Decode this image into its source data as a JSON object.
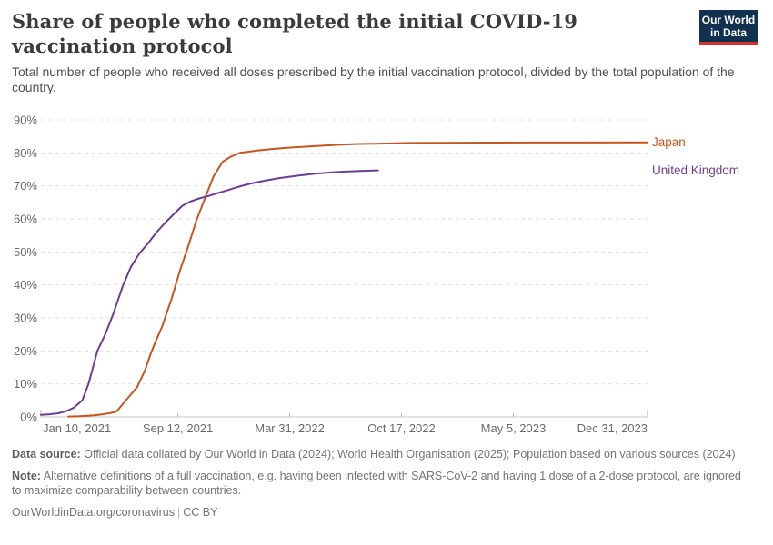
{
  "header": {
    "title": "Share of people who completed the initial COVID-19 vaccination protocol",
    "subtitle": "Total number of people who received all doses prescribed by the initial vaccination protocol, divided by the total population of the country.",
    "logo": {
      "line1": "Our World",
      "line2": "in Data"
    }
  },
  "chart_data": {
    "type": "line",
    "title": "Share of people who completed the initial COVID-19 vaccination protocol",
    "xlabel": "",
    "ylabel": "",
    "ylim": [
      0,
      90
    ],
    "y_tick_step": 10,
    "y_tick_format": "percent",
    "grid": "horizontal-dashed",
    "legend_position": "right-of-plot",
    "x_range": [
      "2021-01-10",
      "2023-12-31"
    ],
    "x_ticks": [
      {
        "date": "2021-01-10",
        "label": "Jan 10, 2021"
      },
      {
        "date": "2021-09-12",
        "label": "Sep 12, 2021"
      },
      {
        "date": "2022-03-31",
        "label": "Mar 31, 2022"
      },
      {
        "date": "2022-10-17",
        "label": "Oct 17, 2022"
      },
      {
        "date": "2023-05-05",
        "label": "May 5, 2023"
      },
      {
        "date": "2023-12-31",
        "label": "Dec 31, 2023"
      }
    ],
    "y_tick_labels": [
      "0%",
      "10%",
      "20%",
      "30%",
      "40%",
      "50%",
      "60%",
      "70%",
      "80%",
      "90%"
    ],
    "series": [
      {
        "name": "Japan",
        "color": "#c4571d",
        "points": [
          [
            "2021-02-28",
            0.1
          ],
          [
            "2021-03-20",
            0.2
          ],
          [
            "2021-04-15",
            0.5
          ],
          [
            "2021-05-01",
            0.8
          ],
          [
            "2021-05-15",
            1.2
          ],
          [
            "2021-05-25",
            1.6
          ],
          [
            "2021-06-01",
            3.0
          ],
          [
            "2021-06-15",
            5.8
          ],
          [
            "2021-07-01",
            9.0
          ],
          [
            "2021-07-15",
            14.0
          ],
          [
            "2021-07-25",
            19.0
          ],
          [
            "2021-08-01",
            22.0
          ],
          [
            "2021-08-15",
            27.5
          ],
          [
            "2021-09-01",
            36.0
          ],
          [
            "2021-09-15",
            44.0
          ],
          [
            "2021-10-01",
            52.0
          ],
          [
            "2021-10-15",
            59.5
          ],
          [
            "2021-11-01",
            67.0
          ],
          [
            "2021-11-15",
            73.0
          ],
          [
            "2021-12-01",
            77.3
          ],
          [
            "2021-12-15",
            78.8
          ],
          [
            "2022-01-01",
            80.0
          ],
          [
            "2022-02-01",
            80.7
          ],
          [
            "2022-03-01",
            81.2
          ],
          [
            "2022-04-01",
            81.6
          ],
          [
            "2022-05-01",
            81.9
          ],
          [
            "2022-06-01",
            82.2
          ],
          [
            "2022-07-01",
            82.5
          ],
          [
            "2022-08-01",
            82.7
          ],
          [
            "2022-09-01",
            82.8
          ],
          [
            "2022-11-01",
            83.0
          ],
          [
            "2023-02-01",
            83.1
          ],
          [
            "2023-06-01",
            83.15
          ],
          [
            "2023-12-31",
            83.2
          ]
        ]
      },
      {
        "name": "United Kingdom",
        "color": "#6d3e91",
        "points": [
          [
            "2021-01-10",
            0.6
          ],
          [
            "2021-01-25",
            0.8
          ],
          [
            "2021-02-10",
            1.1
          ],
          [
            "2021-02-25",
            1.8
          ],
          [
            "2021-03-10",
            2.8
          ],
          [
            "2021-03-25",
            5.0
          ],
          [
            "2021-04-05",
            10.0
          ],
          [
            "2021-04-21",
            20.0
          ],
          [
            "2021-05-05",
            25.0
          ],
          [
            "2021-05-20",
            31.5
          ],
          [
            "2021-06-05",
            39.5
          ],
          [
            "2021-06-20",
            45.5
          ],
          [
            "2021-07-05",
            49.5
          ],
          [
            "2021-07-20",
            52.5
          ],
          [
            "2021-08-05",
            56.0
          ],
          [
            "2021-08-20",
            58.8
          ],
          [
            "2021-09-05",
            61.5
          ],
          [
            "2021-09-20",
            64.0
          ],
          [
            "2021-10-05",
            65.3
          ],
          [
            "2021-10-20",
            66.2
          ],
          [
            "2021-11-05",
            66.9
          ],
          [
            "2021-11-20",
            67.7
          ],
          [
            "2021-12-10",
            68.7
          ],
          [
            "2021-12-31",
            69.8
          ],
          [
            "2022-01-20",
            70.7
          ],
          [
            "2022-02-15",
            71.6
          ],
          [
            "2022-03-15",
            72.4
          ],
          [
            "2022-04-15",
            73.1
          ],
          [
            "2022-05-15",
            73.7
          ],
          [
            "2022-06-15",
            74.1
          ],
          [
            "2022-07-15",
            74.4
          ],
          [
            "2022-08-15",
            74.6
          ],
          [
            "2022-09-05",
            74.7
          ]
        ]
      }
    ]
  },
  "footer": {
    "data_source_label": "Data source:",
    "data_source_text": "Official data collated by Our World in Data (2024); World Health Organisation (2025); Population based on various sources (2024)",
    "note_label": "Note:",
    "note_text": "Alternative definitions of a full vaccination, e.g. having been infected with SARS-CoV-2 and having 1 dose of a 2-dose protocol, are ignored to maximize comparability between countries.",
    "citation_url": "OurWorldinData.org/coronavirus",
    "citation_divider": "|",
    "citation_license": "CC BY"
  }
}
